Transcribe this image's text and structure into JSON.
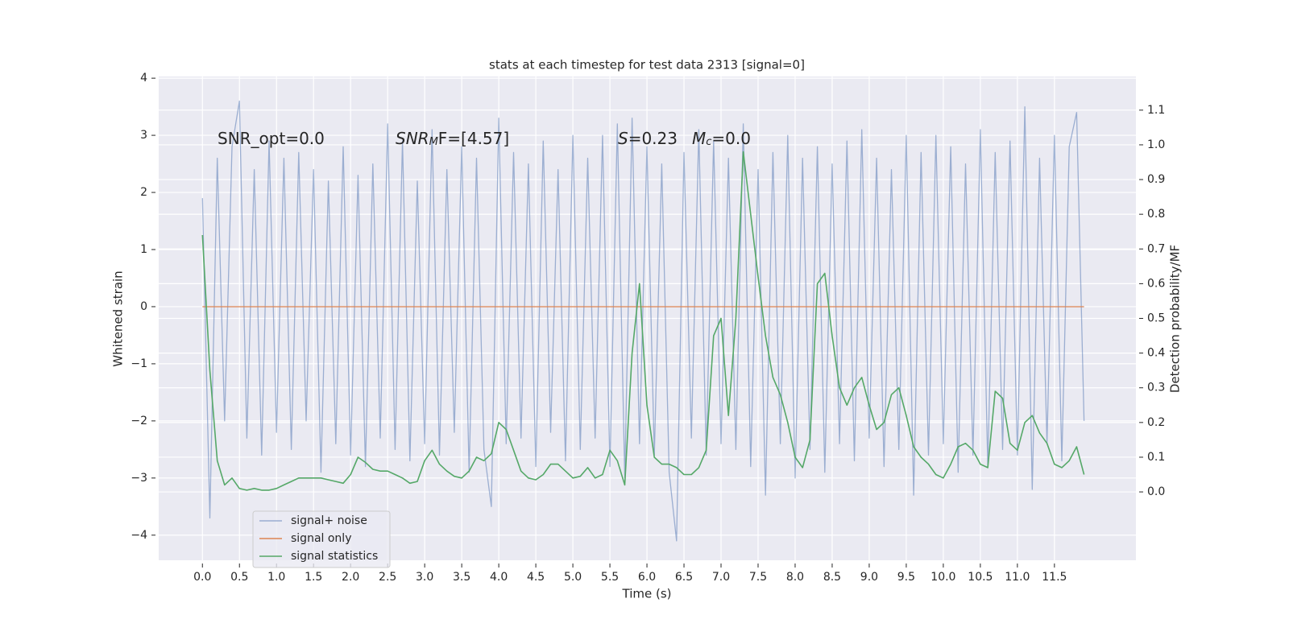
{
  "chart_data": {
    "type": "line",
    "title": "stats at each timestep for test data 2313 [signal=0]",
    "x_label": "Time (s)",
    "y_label": "Whitened strain",
    "y2_label": "Detection probability/MF",
    "annotations": [
      [
        {
          "text": "SNR_opt=0.0"
        }
      ],
      [
        {
          "text": "SNR",
          "italic": true
        },
        {
          "text": "M",
          "italic": true,
          "sub": true
        },
        {
          "text": "F=[4.57]"
        }
      ],
      [
        {
          "text": "S",
          "italic": true
        },
        {
          "text": "=0.23"
        }
      ],
      [
        {
          "text": "M",
          "italic": true
        },
        {
          "text": "c",
          "italic": true,
          "sub": true
        },
        {
          "text": "=0.0"
        }
      ]
    ],
    "x": [
      0.0,
      0.1,
      0.2,
      0.3,
      0.4,
      0.5,
      0.6,
      0.7,
      0.8,
      0.9,
      1.0,
      1.1,
      1.2,
      1.3,
      1.4,
      1.5,
      1.6,
      1.7,
      1.8,
      1.9,
      2.0,
      2.1,
      2.2,
      2.3,
      2.4,
      2.5,
      2.6,
      2.7,
      2.8,
      2.9,
      3.0,
      3.1,
      3.2,
      3.3,
      3.4,
      3.5,
      3.6,
      3.7,
      3.8,
      3.9,
      4.0,
      4.1,
      4.2,
      4.3,
      4.4,
      4.5,
      4.6,
      4.7,
      4.8,
      4.9,
      5.0,
      5.1,
      5.2,
      5.3,
      5.4,
      5.5,
      5.6,
      5.7,
      5.8,
      5.9,
      6.0,
      6.1,
      6.2,
      6.3,
      6.4,
      6.5,
      6.6,
      6.7,
      6.8,
      6.9,
      7.0,
      7.1,
      7.2,
      7.3,
      7.4,
      7.5,
      7.6,
      7.7,
      7.8,
      7.9,
      8.0,
      8.1,
      8.2,
      8.3,
      8.4,
      8.5,
      8.6,
      8.7,
      8.8,
      8.9,
      9.0,
      9.1,
      9.2,
      9.3,
      9.4,
      9.5,
      9.6,
      9.7,
      9.8,
      9.9,
      10.0,
      10.1,
      10.2,
      10.3,
      10.4,
      10.5,
      10.6,
      10.7,
      10.8,
      10.9,
      11.0,
      11.1,
      11.2,
      11.3,
      11.4,
      11.5,
      11.6,
      11.7,
      11.8,
      11.9
    ],
    "series": [
      {
        "name": "signal+ noise",
        "color": "#4c72b0",
        "opacity": 0.5,
        "axis": "y",
        "values": [
          1.9,
          -3.7,
          2.6,
          -2.0,
          2.8,
          3.6,
          -2.3,
          2.4,
          -2.6,
          2.9,
          -2.2,
          2.6,
          -2.5,
          2.7,
          -2.0,
          2.4,
          -2.9,
          2.2,
          -2.4,
          2.8,
          -2.6,
          2.3,
          -2.8,
          2.5,
          -2.3,
          3.2,
          -2.5,
          2.9,
          -2.7,
          2.2,
          -2.4,
          3.1,
          -2.6,
          2.4,
          -2.2,
          2.8,
          -2.9,
          2.6,
          -2.5,
          -3.5,
          3.3,
          -2.4,
          2.7,
          -2.3,
          2.5,
          -2.8,
          2.9,
          -2.2,
          2.4,
          -2.7,
          3.0,
          -2.5,
          2.6,
          -2.3,
          3.0,
          -2.8,
          3.2,
          -3.0,
          3.3,
          -2.4,
          2.8,
          -2.6,
          2.5,
          -2.9,
          -4.1,
          2.7,
          -2.3,
          3.1,
          -2.6,
          2.9,
          -2.4,
          2.6,
          -2.5,
          3.2,
          -2.8,
          2.4,
          -3.3,
          2.7,
          -2.4,
          3.0,
          -3.0,
          2.6,
          -2.5,
          2.8,
          -2.9,
          2.5,
          -2.4,
          2.9,
          -2.7,
          3.1,
          -2.3,
          2.6,
          -2.8,
          2.4,
          -2.5,
          3.0,
          -3.3,
          2.7,
          -2.6,
          3.0,
          -2.4,
          2.8,
          -2.9,
          2.5,
          -2.6,
          3.1,
          -2.8,
          2.7,
          -2.5,
          2.9,
          -2.6,
          3.5,
          -3.2,
          2.6,
          -2.4,
          3.0,
          -2.7,
          2.8,
          3.4,
          -2.0
        ]
      },
      {
        "name": "signal only",
        "color": "#dd8452",
        "opacity": 1,
        "axis": "y",
        "values": [
          0,
          0,
          0,
          0,
          0,
          0,
          0,
          0,
          0,
          0,
          0,
          0,
          0,
          0,
          0,
          0,
          0,
          0,
          0,
          0,
          0,
          0,
          0,
          0,
          0,
          0,
          0,
          0,
          0,
          0,
          0,
          0,
          0,
          0,
          0,
          0,
          0,
          0,
          0,
          0,
          0,
          0,
          0,
          0,
          0,
          0,
          0,
          0,
          0,
          0,
          0,
          0,
          0,
          0,
          0,
          0,
          0,
          0,
          0,
          0,
          0,
          0,
          0,
          0,
          0,
          0,
          0,
          0,
          0,
          0,
          0,
          0,
          0,
          0,
          0,
          0,
          0,
          0,
          0,
          0,
          0,
          0,
          0,
          0,
          0,
          0,
          0,
          0,
          0,
          0,
          0,
          0,
          0,
          0,
          0,
          0,
          0,
          0,
          0,
          0,
          0,
          0,
          0,
          0,
          0,
          0,
          0,
          0,
          0,
          0,
          0,
          0,
          0,
          0,
          0,
          0,
          0,
          0,
          0,
          0
        ]
      },
      {
        "name": "signal statistics",
        "color": "#55a868",
        "opacity": 1,
        "axis": "y2",
        "values": [
          0.74,
          0.35,
          0.09,
          0.02,
          0.04,
          0.01,
          0.005,
          0.01,
          0.005,
          0.005,
          0.01,
          0.02,
          0.03,
          0.04,
          0.04,
          0.04,
          0.04,
          0.035,
          0.03,
          0.025,
          0.05,
          0.1,
          0.085,
          0.065,
          0.06,
          0.06,
          0.05,
          0.04,
          0.025,
          0.03,
          0.09,
          0.12,
          0.08,
          0.06,
          0.045,
          0.04,
          0.06,
          0.1,
          0.09,
          0.11,
          0.2,
          0.18,
          0.12,
          0.06,
          0.04,
          0.035,
          0.05,
          0.08,
          0.08,
          0.06,
          0.04,
          0.045,
          0.07,
          0.04,
          0.05,
          0.12,
          0.09,
          0.02,
          0.4,
          0.6,
          0.25,
          0.1,
          0.08,
          0.08,
          0.07,
          0.05,
          0.05,
          0.07,
          0.12,
          0.45,
          0.5,
          0.22,
          0.5,
          0.98,
          0.8,
          0.62,
          0.45,
          0.33,
          0.28,
          0.2,
          0.1,
          0.07,
          0.15,
          0.6,
          0.63,
          0.45,
          0.3,
          0.25,
          0.3,
          0.33,
          0.25,
          0.18,
          0.2,
          0.28,
          0.3,
          0.22,
          0.13,
          0.1,
          0.08,
          0.05,
          0.04,
          0.08,
          0.13,
          0.14,
          0.12,
          0.08,
          0.07,
          0.29,
          0.27,
          0.14,
          0.12,
          0.2,
          0.22,
          0.17,
          0.14,
          0.08,
          0.07,
          0.09,
          0.13,
          0.05
        ]
      }
    ],
    "xlim": [
      -0.59,
      12.6
    ],
    "ylim": [
      -4.44,
      4.03
    ],
    "y2lim": [
      -0.197,
      1.197
    ],
    "xticks": [
      {
        "value": 0,
        "label": "0.0"
      },
      0.5,
      {
        "value": 1,
        "label": "1.0"
      },
      1.5,
      {
        "value": 2,
        "label": "2.0"
      },
      2.5,
      {
        "value": 3,
        "label": "3.0"
      },
      3.5,
      {
        "value": 4,
        "label": "4.0"
      },
      4.5,
      {
        "value": 5,
        "label": "5.0"
      },
      5.5,
      {
        "value": 6,
        "label": "6.0"
      },
      6.5,
      {
        "value": 7,
        "label": "7.0"
      },
      7.5,
      {
        "value": 8,
        "label": "8.0"
      },
      8.5,
      {
        "value": 9,
        "label": "9.0"
      },
      9.5,
      {
        "value": 10,
        "label": "10.0"
      },
      10.5,
      {
        "value": 11,
        "label": "11.0"
      },
      11.5
    ],
    "yticks": [
      {
        "value": -4,
        "label": "−4"
      },
      {
        "value": -3,
        "label": "−3"
      },
      {
        "value": -2,
        "label": "−2"
      },
      {
        "value": -1,
        "label": "−1"
      },
      0,
      1,
      2,
      3,
      4
    ],
    "y2ticks": [
      {
        "value": 0,
        "label": "0.0"
      },
      0.1,
      0.2,
      0.3,
      0.4,
      0.5,
      0.6,
      0.7,
      0.8,
      0.9,
      {
        "value": 1,
        "label": "1.0"
      },
      1.1
    ],
    "grid": true,
    "legend": "lower left"
  }
}
